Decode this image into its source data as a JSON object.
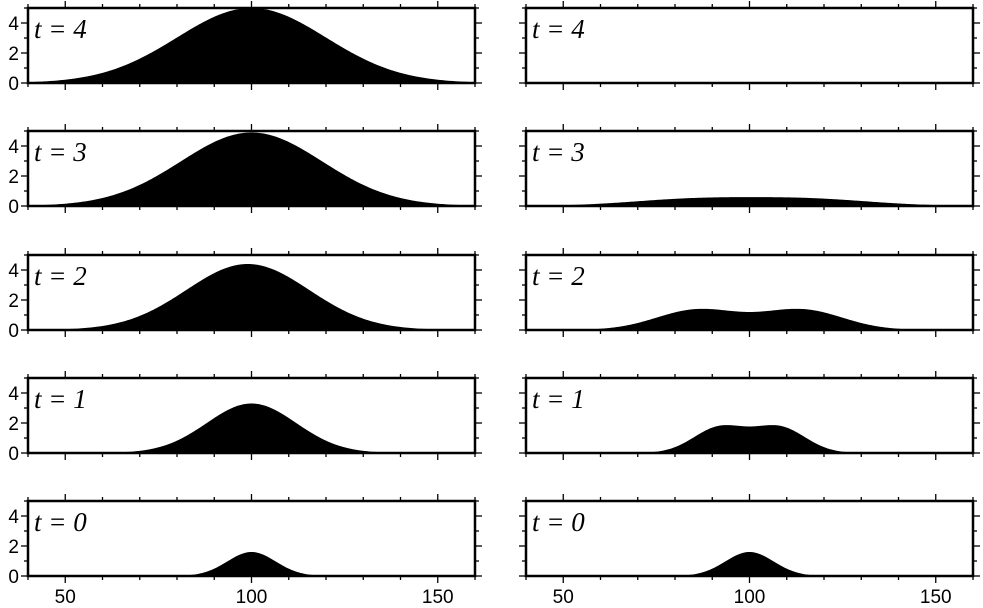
{
  "chart_data": {
    "type": "area",
    "panel_label_prefix": "t = ",
    "xlim": [
      40,
      160
    ],
    "ylim": [
      0,
      5
    ],
    "xticks": [
      50,
      100,
      150
    ],
    "yticks": [
      0,
      2,
      4
    ],
    "fill_color": "#000000",
    "grid": false,
    "columns": [
      {
        "name": "",
        "panels": [
          {
            "t": 4,
            "label": "4",
            "components": [
              {
                "center": 100,
                "amplitude": 5.0,
                "sigma": 20.0
              }
            ]
          },
          {
            "t": 3,
            "label": "3",
            "components": [
              {
                "center": 100,
                "amplitude": 4.9,
                "sigma": 19.0
              }
            ]
          },
          {
            "t": 2,
            "label": "2",
            "components": [
              {
                "center": 99,
                "amplitude": 4.4,
                "sigma": 16.5
              }
            ]
          },
          {
            "t": 1,
            "label": "1",
            "components": [
              {
                "center": 100,
                "amplitude": 3.3,
                "sigma": 12.0
              }
            ]
          },
          {
            "t": 0,
            "label": "0",
            "components": [
              {
                "center": 100,
                "amplitude": 1.6,
                "sigma": 6.5
              }
            ]
          }
        ]
      },
      {
        "name": "",
        "panels": [
          {
            "t": 4,
            "label": "4",
            "components": [
              {
                "center": 100,
                "amplitude": 0.05,
                "sigma": 40.0
              }
            ]
          },
          {
            "t": 3,
            "label": "3",
            "components": [
              {
                "center": 85,
                "amplitude": 0.45,
                "sigma": 17.0
              },
              {
                "center": 116,
                "amplitude": 0.45,
                "sigma": 17.0
              }
            ]
          },
          {
            "t": 2,
            "label": "2",
            "components": [
              {
                "center": 86,
                "amplitude": 1.35,
                "sigma": 11.0
              },
              {
                "center": 114,
                "amplitude": 1.35,
                "sigma": 11.0
              }
            ]
          },
          {
            "t": 1,
            "label": "1",
            "components": [
              {
                "center": 92,
                "amplitude": 1.7,
                "sigma": 7.0
              },
              {
                "center": 108,
                "amplitude": 1.7,
                "sigma": 7.0
              }
            ]
          },
          {
            "t": 0,
            "label": "0",
            "components": [
              {
                "center": 100,
                "amplitude": 1.6,
                "sigma": 6.5
              }
            ]
          }
        ]
      }
    ]
  }
}
